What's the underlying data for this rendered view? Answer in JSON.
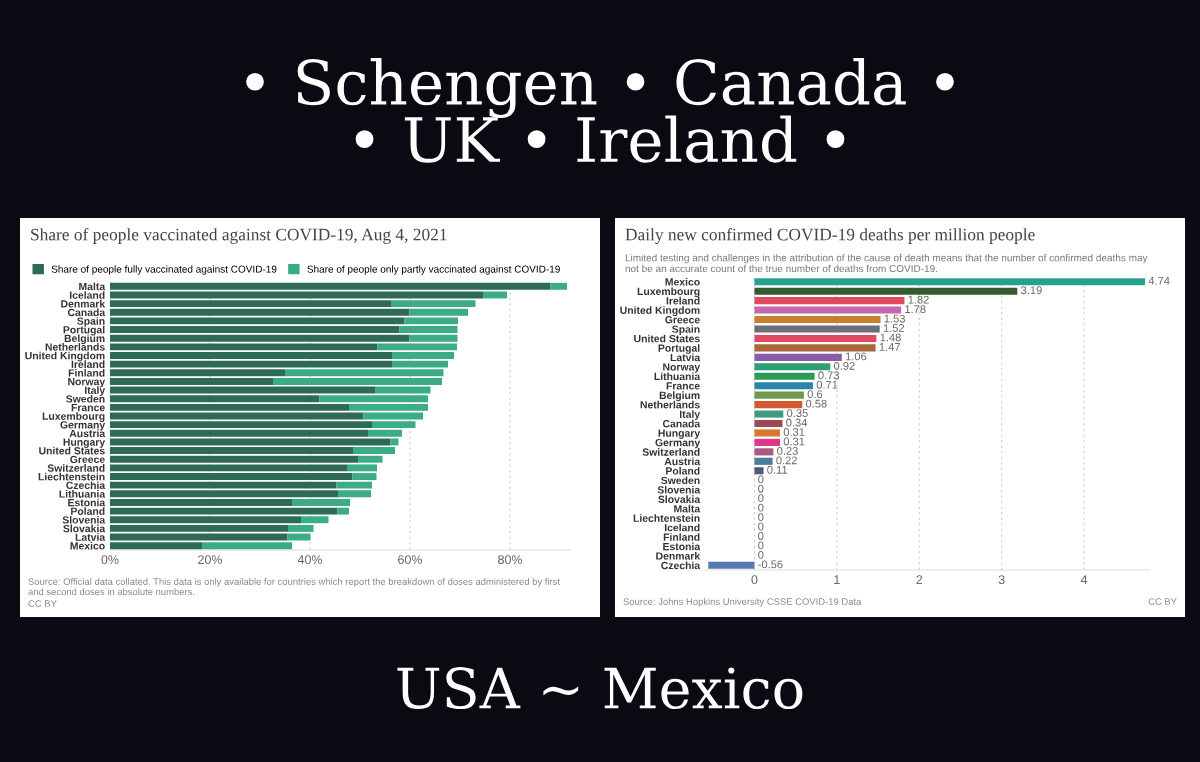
{
  "chart_data": [
    {
      "type": "other",
      "annotations": [
        "• Schengen • Canada •",
        "• UK • Ireland •",
        "USA ~ Mexico"
      ]
    },
    {
      "type": "bar",
      "orientation": "horizontal",
      "stacked": true,
      "title": "Share of people vaccinated against COVID-19, Aug 4, 2021",
      "categories": [
        "Malta",
        "Iceland",
        "Denmark",
        "Canada",
        "Spain",
        "Portugal",
        "Belgium",
        "Netherlands",
        "United Kingdom",
        "Ireland",
        "Finland",
        "Norway",
        "Italy",
        "Sweden",
        "France",
        "Luxembourg",
        "Germany",
        "Austria",
        "Hungary",
        "United States",
        "Greece",
        "Switzerland",
        "Liechtenstein",
        "Czechia",
        "Lithuania",
        "Estonia",
        "Poland",
        "Slovenia",
        "Slovakia",
        "Latvia",
        "Mexico"
      ],
      "series": [
        {
          "name": "Share of people fully vaccinated against COVID-19",
          "color": "#2e6b55",
          "values": [
            88.1,
            74.6,
            56.2,
            59.9,
            58.9,
            57.9,
            59.9,
            53.5,
            56.4,
            56.4,
            35.0,
            32.6,
            53.0,
            41.9,
            47.8,
            50.7,
            52.4,
            51.6,
            56.1,
            48.6,
            49.6,
            47.4,
            48.5,
            45.3,
            45.6,
            36.4,
            45.5,
            38.2,
            35.6,
            35.5,
            18.4
          ]
        },
        {
          "name": "Share of people only partly vaccinated against COVID-19",
          "color": "#3bab88",
          "values": [
            3.3,
            4.8,
            16.9,
            11.7,
            10.7,
            11.6,
            9.6,
            15.9,
            12.4,
            11.2,
            31.7,
            33.8,
            11.1,
            21.7,
            15.8,
            11.9,
            8.7,
            6.8,
            1.6,
            8.4,
            4.9,
            6.0,
            4.8,
            7.1,
            6.6,
            11.6,
            2.3,
            5.5,
            5.1,
            4.6,
            18.0
          ]
        }
      ],
      "xlim": [
        0,
        92
      ],
      "xticks": [
        {
          "value": 0,
          "label": "0%"
        },
        {
          "value": 20,
          "label": "20%"
        },
        {
          "value": 40,
          "label": "40%"
        },
        {
          "value": 60,
          "label": "60%"
        },
        {
          "value": 80,
          "label": "80%"
        }
      ],
      "grid": "x",
      "legend": "top",
      "annotations": [
        "Source: Official data collated. This data is only available for countries which report the breakdown of doses administered by first and second doses in absolute numbers.",
        "CC BY"
      ]
    },
    {
      "type": "bar",
      "orientation": "horizontal",
      "title": "Daily new confirmed COVID-19 deaths per million people",
      "subtitle": "Limited testing and challenges in the attribution of the cause of death means that the number of confirmed deaths may not be an accurate count of the true number of deaths from COVID-19.",
      "categories": [
        "Mexico",
        "Luxembourg",
        "Ireland",
        "United Kingdom",
        "Greece",
        "Spain",
        "United States",
        "Portugal",
        "Latvia",
        "Norway",
        "Lithuania",
        "France",
        "Belgium",
        "Netherlands",
        "Italy",
        "Canada",
        "Hungary",
        "Germany",
        "Switzerland",
        "Austria",
        "Poland",
        "Sweden",
        "Slovenia",
        "Slovakia",
        "Malta",
        "Liechtenstein",
        "Iceland",
        "Finland",
        "Estonia",
        "Denmark",
        "Czechia"
      ],
      "values": [
        4.74,
        3.19,
        1.82,
        1.78,
        1.53,
        1.52,
        1.48,
        1.47,
        1.06,
        0.92,
        0.73,
        0.71,
        0.6,
        0.58,
        0.35,
        0.34,
        0.31,
        0.31,
        0.23,
        0.22,
        0.11,
        0,
        0,
        0,
        0,
        0,
        0,
        0,
        0,
        0,
        -0.56
      ],
      "colors": [
        "#26a191",
        "#365b30",
        "#e0485f",
        "#c466b0",
        "#c8802e",
        "#6b6f7a",
        "#e04a62",
        "#a8663a",
        "#8b5aa8",
        "#2e9e76",
        "#2e9a58",
        "#2b85a8",
        "#6f9a4e",
        "#d2582e",
        "#3f9a80",
        "#9a4a58",
        "#d8762a",
        "#e0368a",
        "#a85a80",
        "#4a7d9a",
        "#4e5a7a",
        "#888888",
        "#888888",
        "#888888",
        "#888888",
        "#888888",
        "#888888",
        "#888888",
        "#888888",
        "#888888",
        "#5a78b0"
      ],
      "data_labels": true,
      "xlim": [
        -0.6,
        4.8
      ],
      "xticks": [
        0,
        1,
        2,
        3,
        4
      ],
      "grid": "x",
      "annotations": [
        "Source: Johns Hopkins University CSSE COVID-19 Data",
        "CC BY"
      ]
    }
  ]
}
